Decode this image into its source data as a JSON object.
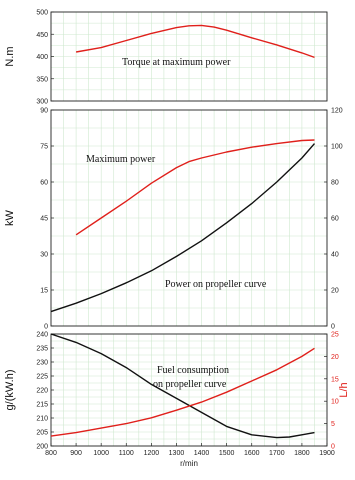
{
  "chart_data": [
    {
      "type": "line",
      "xlim": [
        800,
        1900
      ],
      "ylim": [
        300,
        500
      ],
      "ylabel": "N.m",
      "yticks": [
        300,
        350,
        400,
        450,
        500
      ],
      "annotation": "Torque at maximum power",
      "series": [
        {
          "axis": "left",
          "color": "#e0201b",
          "x": [
            900,
            1000,
            1100,
            1200,
            1300,
            1350,
            1400,
            1450,
            1500,
            1600,
            1700,
            1800,
            1850
          ],
          "y": [
            410,
            420,
            436,
            452,
            465,
            469,
            470,
            466,
            459,
            442,
            426,
            408,
            398
          ]
        }
      ]
    },
    {
      "type": "line",
      "xlim": [
        800,
        1900
      ],
      "ylim": [
        0,
        90
      ],
      "ylim_right": [
        0,
        120
      ],
      "ylabel": "kW",
      "yticks": [
        0,
        15,
        30,
        45,
        60,
        75,
        90
      ],
      "yticks_right": [
        0,
        20,
        40,
        60,
        80,
        100,
        120
      ],
      "annotations": [
        "Maximum power",
        "Power on propeller curve"
      ],
      "series": [
        {
          "axis": "left",
          "color": "#e0201b",
          "x": [
            900,
            1000,
            1100,
            1200,
            1300,
            1350,
            1400,
            1500,
            1600,
            1700,
            1800,
            1850
          ],
          "y": [
            38,
            45,
            52,
            59.5,
            66,
            68.5,
            70,
            72.5,
            74.5,
            76,
            77.3,
            77.5
          ]
        },
        {
          "axis": "left",
          "color": "#111111",
          "x": [
            800,
            900,
            1000,
            1100,
            1200,
            1300,
            1400,
            1500,
            1600,
            1700,
            1800,
            1850
          ],
          "y": [
            6,
            9.5,
            13.5,
            18,
            23,
            29,
            35.5,
            43,
            51,
            60,
            70,
            76
          ]
        }
      ]
    },
    {
      "type": "line",
      "xlim": [
        800,
        1900
      ],
      "ylim": [
        200,
        240
      ],
      "ylim_right": [
        0,
        25
      ],
      "ylabel": "g/(kW.h)",
      "ylabel_right": "L/h",
      "xlabel": "r/min",
      "xticks": [
        800,
        900,
        1000,
        1100,
        1200,
        1300,
        1400,
        1500,
        1600,
        1700,
        1800,
        1900
      ],
      "yticks": [
        200,
        205,
        210,
        215,
        220,
        225,
        230,
        235,
        240
      ],
      "yticks_right": [
        0,
        5,
        10,
        15,
        20,
        25
      ],
      "annotation": [
        "Fuel consumption",
        "on propeller curve"
      ],
      "series": [
        {
          "axis": "left",
          "color": "#111111",
          "x": [
            800,
            900,
            1000,
            1100,
            1200,
            1300,
            1400,
            1500,
            1600,
            1700,
            1750,
            1800,
            1850
          ],
          "y": [
            240,
            237,
            233,
            228,
            222,
            217,
            212,
            207,
            204,
            203,
            203.2,
            204,
            204.8
          ]
        },
        {
          "axis": "right",
          "color": "#e0201b",
          "x": [
            800,
            900,
            1000,
            1100,
            1200,
            1300,
            1400,
            1500,
            1600,
            1700,
            1800,
            1850
          ],
          "y": [
            2.2,
            3,
            4,
            5,
            6.3,
            8,
            9.8,
            12,
            14.5,
            17,
            20,
            21.8
          ]
        }
      ]
    }
  ]
}
